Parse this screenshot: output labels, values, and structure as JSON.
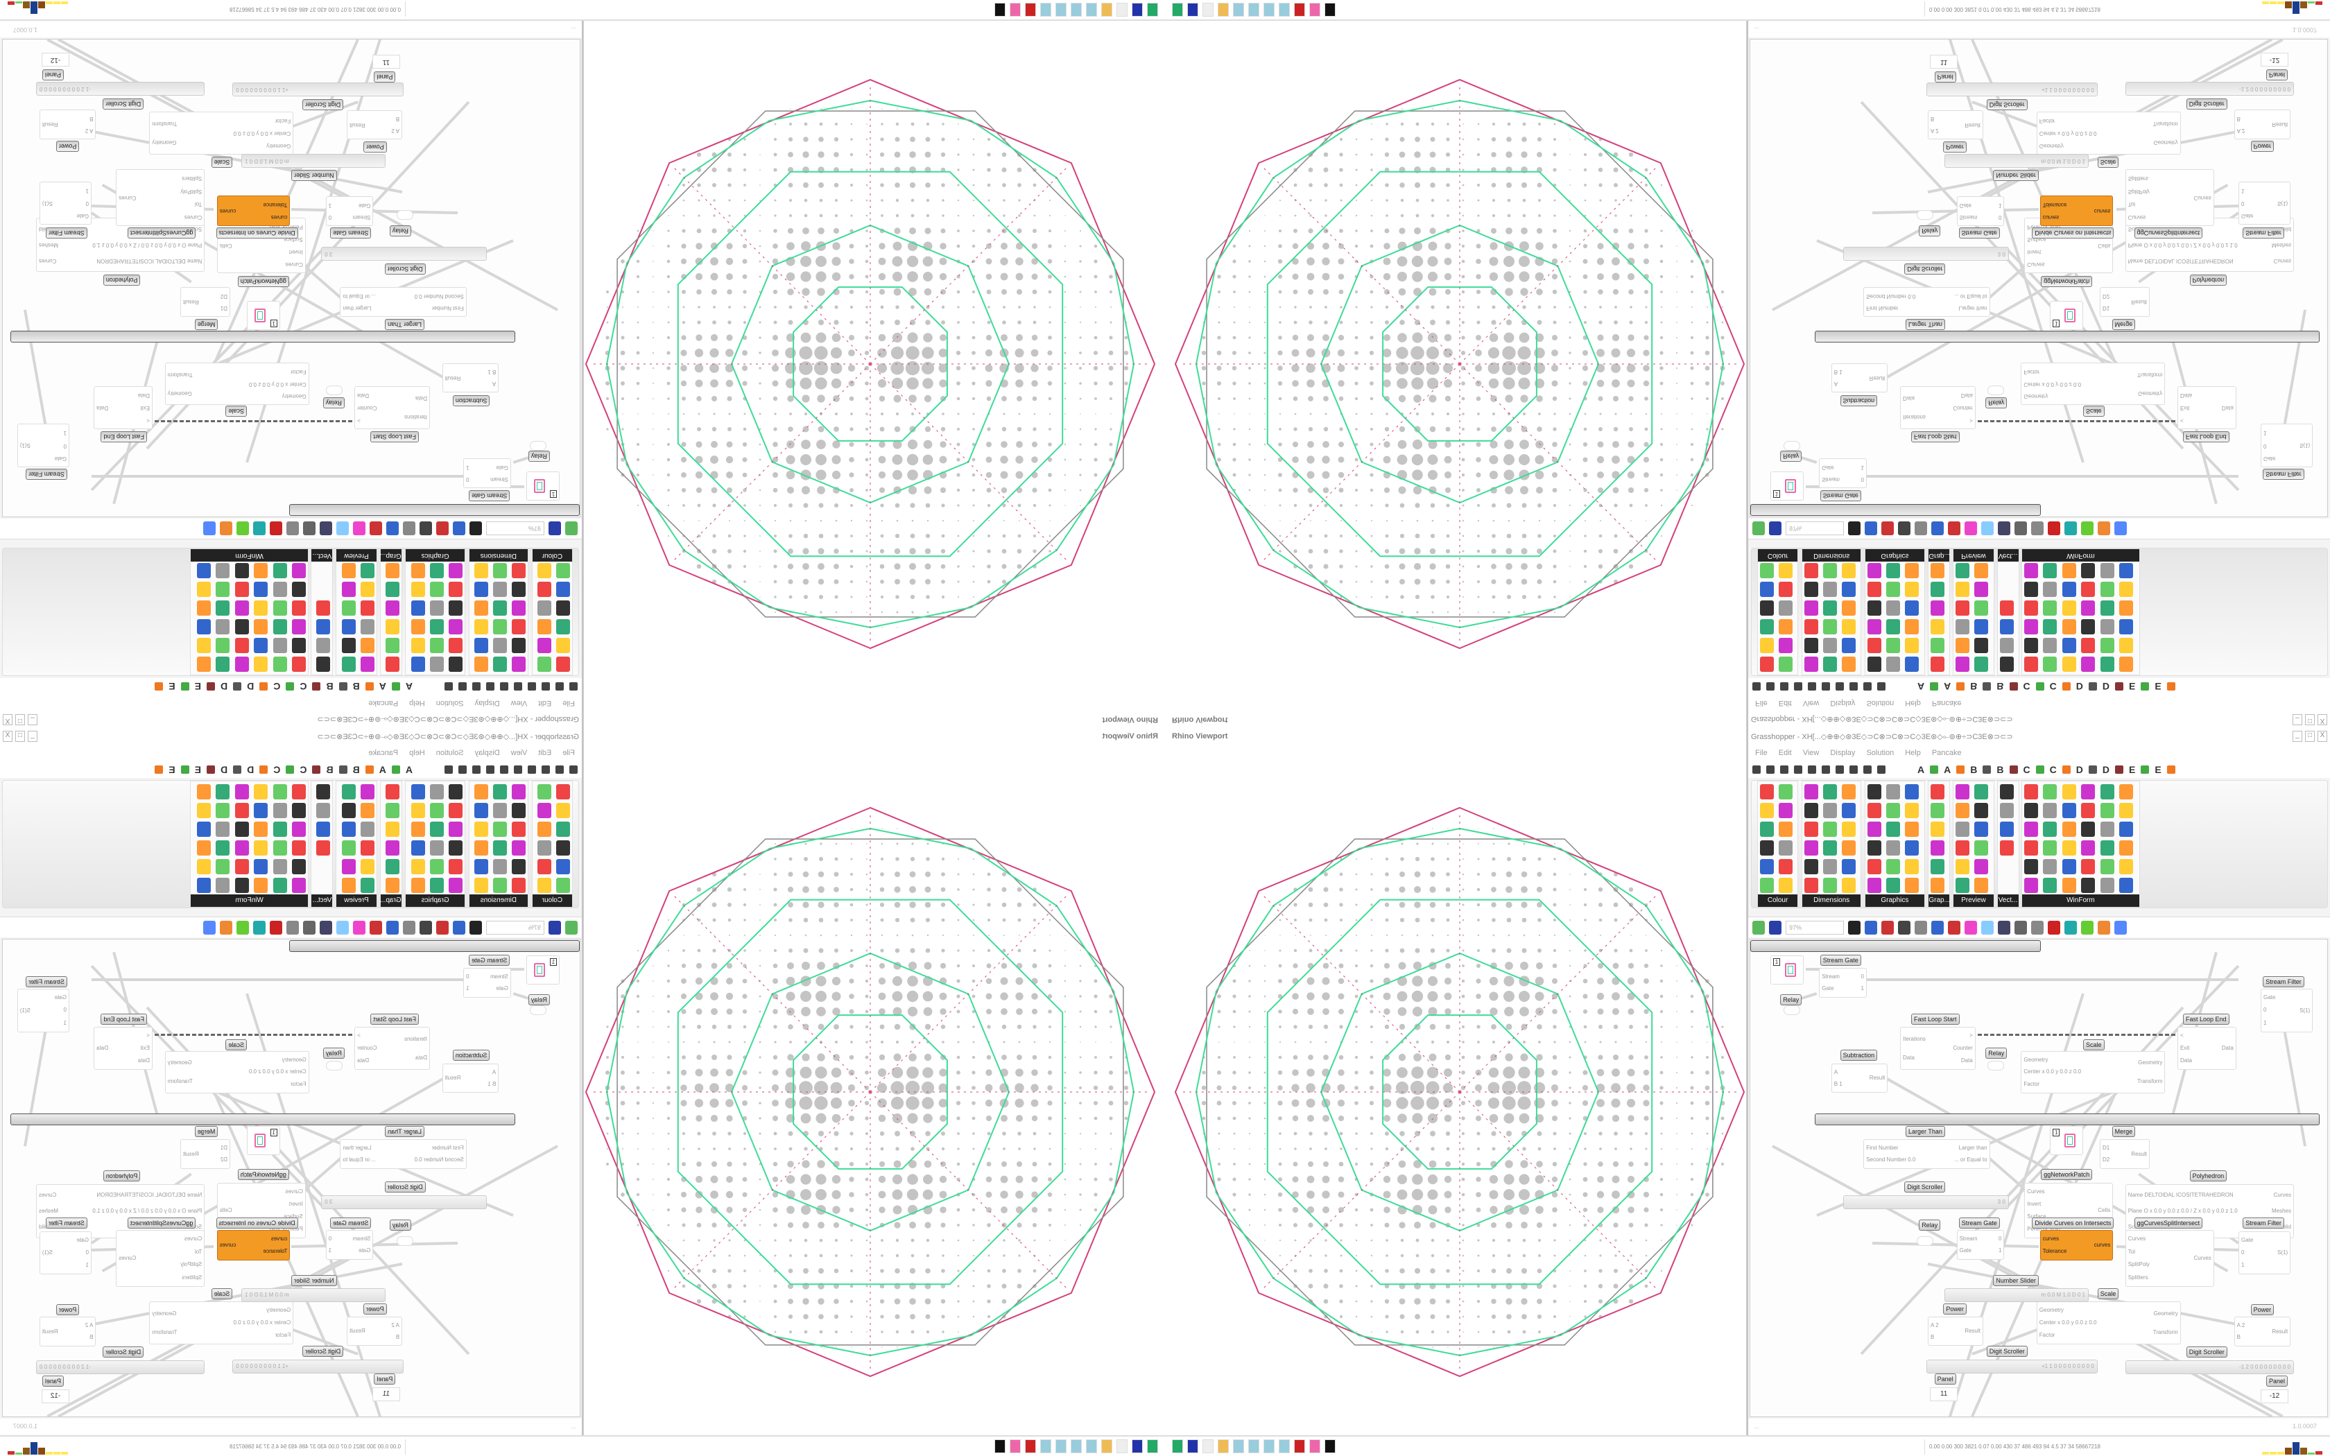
{
  "viewport": {
    "title": "Rhino Viewport",
    "colors": {
      "outline": "#d4407a",
      "network": "#3ddc97",
      "cells": "#c4c4c4",
      "edges": "#888888"
    }
  },
  "window": {
    "title": "Grasshopper - XH[...◇⊕⊕◇⊛3E◇⊃C⊗⊃C⊗⊃C◇3E⊛◇⟜⊚⊕÷⊃C3E⊗⊃⊂⊃",
    "min": "_",
    "max": "□",
    "close": "X"
  },
  "menu": [
    "File",
    "Edit",
    "View",
    "Display",
    "Solution",
    "Help",
    "Pancake"
  ],
  "tab_letters": [
    "A",
    "A",
    "B",
    "B",
    "C",
    "C",
    "D",
    "D",
    "E",
    "E"
  ],
  "ribbon_panels": [
    "Colour",
    "Dimensions",
    "Graphics",
    "Grap...",
    "Preview",
    "Vect...",
    "WinForm"
  ],
  "toolbar": {
    "zoom": "97%"
  },
  "canvas": {
    "components": [
      {
        "label": "Stream Gate",
        "inputs": [
          "Stream",
          "Gate"
        ],
        "outputs": [
          "0",
          "1"
        ]
      },
      {
        "label": "Fast Loop Start",
        "inputs": [
          "Iterations",
          "Data"
        ],
        "outputs": [
          ">",
          "Counter",
          "Data"
        ]
      },
      {
        "label": "Fast Loop End",
        "inputs": [
          "<",
          "Exit",
          "Data"
        ],
        "outputs": [
          "Data"
        ]
      },
      {
        "label": "Scale",
        "inputs": [
          "Geometry",
          "Center x 0.0 y 0.0 z 0.0",
          "Factor"
        ],
        "outputs": [
          "Geometry",
          "Transform"
        ]
      },
      {
        "label": "Subtraction",
        "inputs": [
          "A",
          "B 1"
        ],
        "outputs": [
          "Result"
        ]
      },
      {
        "label": "Stream Filter",
        "inputs": [
          "Gate",
          "0",
          "1"
        ],
        "outputs": [
          "S(1)"
        ]
      },
      {
        "label": "Larger Than",
        "inputs": [
          "First Number",
          "Second Number 0.0"
        ],
        "outputs": [
          "Larger than",
          "... or Equal to"
        ]
      },
      {
        "label": "Merge",
        "inputs": [
          "D1",
          "D2"
        ],
        "outputs": [
          "Result"
        ]
      },
      {
        "label": "ggNetworkPatch",
        "inputs": [
          "Curves",
          "Invert",
          "Surface",
          "Perim or Void"
        ],
        "outputs": [
          "Cells"
        ]
      },
      {
        "label": "Polyhedron",
        "inputs": [
          "Name DELTOIDAL ICOSITETRAHEDRON",
          "Plane  O x 0.0 y 0.0 z 0.0 / Z x 0.0 y 0.0 z 1.0",
          "Scale 0.5"
        ],
        "outputs": [
          "Curves",
          "Meshes",
          "Solid"
        ]
      },
      {
        "label": "Stream Gate",
        "inputs": [
          "Stream",
          "Gate"
        ],
        "outputs": [
          "0",
          "1"
        ]
      },
      {
        "label": "Divide Curves on Intersects",
        "inputs": [
          "curves",
          "Tolerance"
        ],
        "outputs": [
          "curves"
        ]
      },
      {
        "label": "ggCurvesSplitIntersect",
        "inputs": [
          "Curves",
          "Tol",
          "SplitPoly",
          "Splitters"
        ],
        "outputs": [
          "Curves"
        ]
      },
      {
        "label": "Stream Filter",
        "inputs": [
          "Gate",
          "0",
          "1"
        ],
        "outputs": [
          "S(1)"
        ]
      },
      {
        "label": "Scale",
        "inputs": [
          "Geometry",
          "Center x 0.0 y 0.0 z 0.0",
          "Factor"
        ],
        "outputs": [
          "Geometry",
          "Transform"
        ]
      },
      {
        "label": "Power",
        "inputs": [
          "A 2",
          "B"
        ],
        "outputs": [
          "Result"
        ]
      },
      {
        "label": "Power",
        "inputs": [
          "A 2",
          "B"
        ],
        "outputs": [
          "Result"
        ]
      }
    ],
    "relays": [
      "Relay",
      "Relay",
      "Relay"
    ],
    "circle_params": [
      "1",
      "1"
    ],
    "sliders": [
      {
        "label": "Digit Scroller",
        "value": "3 0"
      },
      {
        "label": "Number Slider",
        "value": "m 0.0 M 1.0 D 0   1"
      },
      {
        "label": "Digit Scroller",
        "value": "+1 1 0 0 0 0 0 0 0 0 0"
      },
      {
        "label": "Digit Scroller",
        "value": "-1 2 0 0 0 0 0 0 0 0 0"
      }
    ],
    "panels": [
      {
        "label": "Panel",
        "value": "11"
      },
      {
        "label": "Panel",
        "value": "-12"
      }
    ]
  },
  "status": {
    "left": "...",
    "version": "1.0.0007"
  },
  "taskbar": {
    "readout": "0.00 0.00 300 3821 0.07 0.00 430 37 486 493 94 4.5 37 34 58667218",
    "meter_colors": [
      "#ffe95a",
      "#8b4a12",
      "#1a3f8f",
      "#8b5a1a",
      "#6ad66a",
      "#d03030"
    ]
  }
}
